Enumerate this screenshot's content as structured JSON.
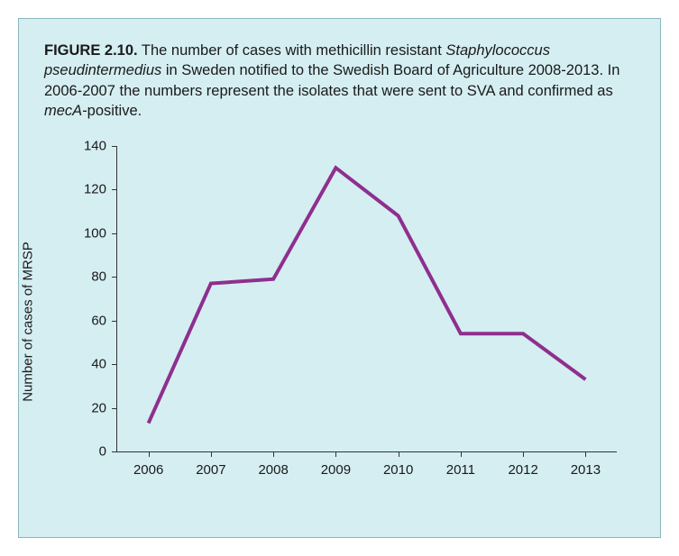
{
  "caption": {
    "label": "FIGURE 2.10.",
    "seg1": " The number of cases with methicillin resistant ",
    "ital1": "Staphylococcus pseudintermedius",
    "seg2": " in Sweden notified to the Swedish Board of Agriculture 2008-2013. In 2006-2007 the numbers represent the isolates that were sent to SVA and confirmed as ",
    "ital2": "mecA",
    "seg3": "-positive."
  },
  "chart": {
    "type": "line",
    "y_axis_label": "Number of cases of MRSP",
    "ylim": [
      0,
      140
    ],
    "ytick_step": 20,
    "yticks": [
      0,
      20,
      40,
      60,
      80,
      100,
      120,
      140
    ],
    "xticks": [
      "2006",
      "2007",
      "2008",
      "2009",
      "2010",
      "2011",
      "2012",
      "2013"
    ],
    "values": [
      13,
      77,
      79,
      130,
      108,
      54,
      54,
      33
    ],
    "line_color": "#8e2f8e",
    "line_width": 4,
    "background_color": "#d5eef2",
    "axis_color": "#333333",
    "text_color": "#1a1a1a",
    "tick_fontsize": 15,
    "axis_label_fontsize": 15,
    "caption_fontsize": 16.5
  }
}
